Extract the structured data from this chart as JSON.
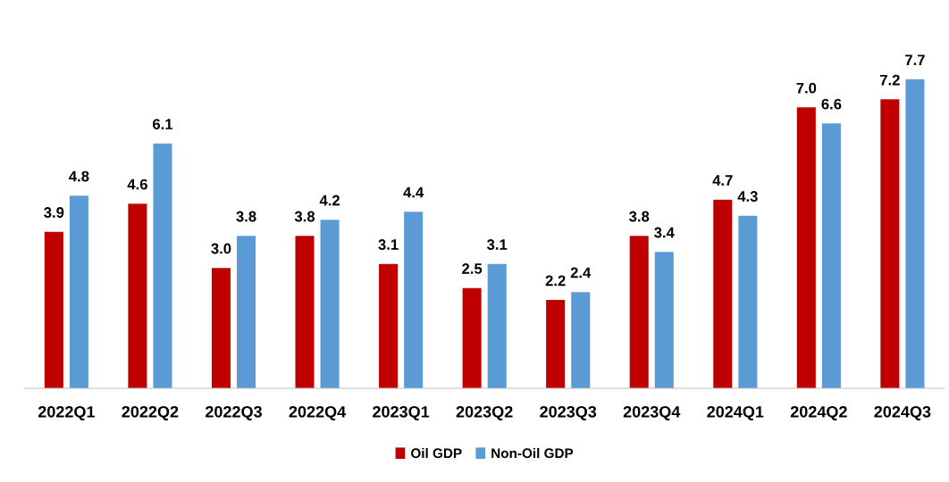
{
  "chart_data": {
    "type": "bar",
    "categories": [
      "2022Q1",
      "2022Q2",
      "2022Q3",
      "2022Q4",
      "2023Q1",
      "2023Q2",
      "2023Q3",
      "2023Q4",
      "2024Q1",
      "2024Q2",
      "2024Q3"
    ],
    "series": [
      {
        "name": "Oil GDP",
        "color": "#c00000",
        "values": [
          3.9,
          4.6,
          3.0,
          3.8,
          3.1,
          2.5,
          2.2,
          3.8,
          4.7,
          7.0,
          7.2
        ],
        "value_labels": [
          "3.9",
          "4.6",
          "3.0",
          "3.8",
          "3.1",
          "2.5",
          "2.2",
          "3.8",
          "4.7",
          "7.0",
          "7.2"
        ]
      },
      {
        "name": "Non-Oil GDP",
        "color": "#5b9bd5",
        "values": [
          4.8,
          6.1,
          3.8,
          4.2,
          4.4,
          3.1,
          2.4,
          3.4,
          4.3,
          6.6,
          7.7
        ],
        "value_labels": [
          "4.8",
          "6.1",
          "3.8",
          "4.2",
          "4.4",
          "3.1",
          "2.4",
          "3.4",
          "4.3",
          "6.6",
          "7.7"
        ]
      }
    ],
    "tick_labels": "x",
    "legend": "bottom"
  }
}
